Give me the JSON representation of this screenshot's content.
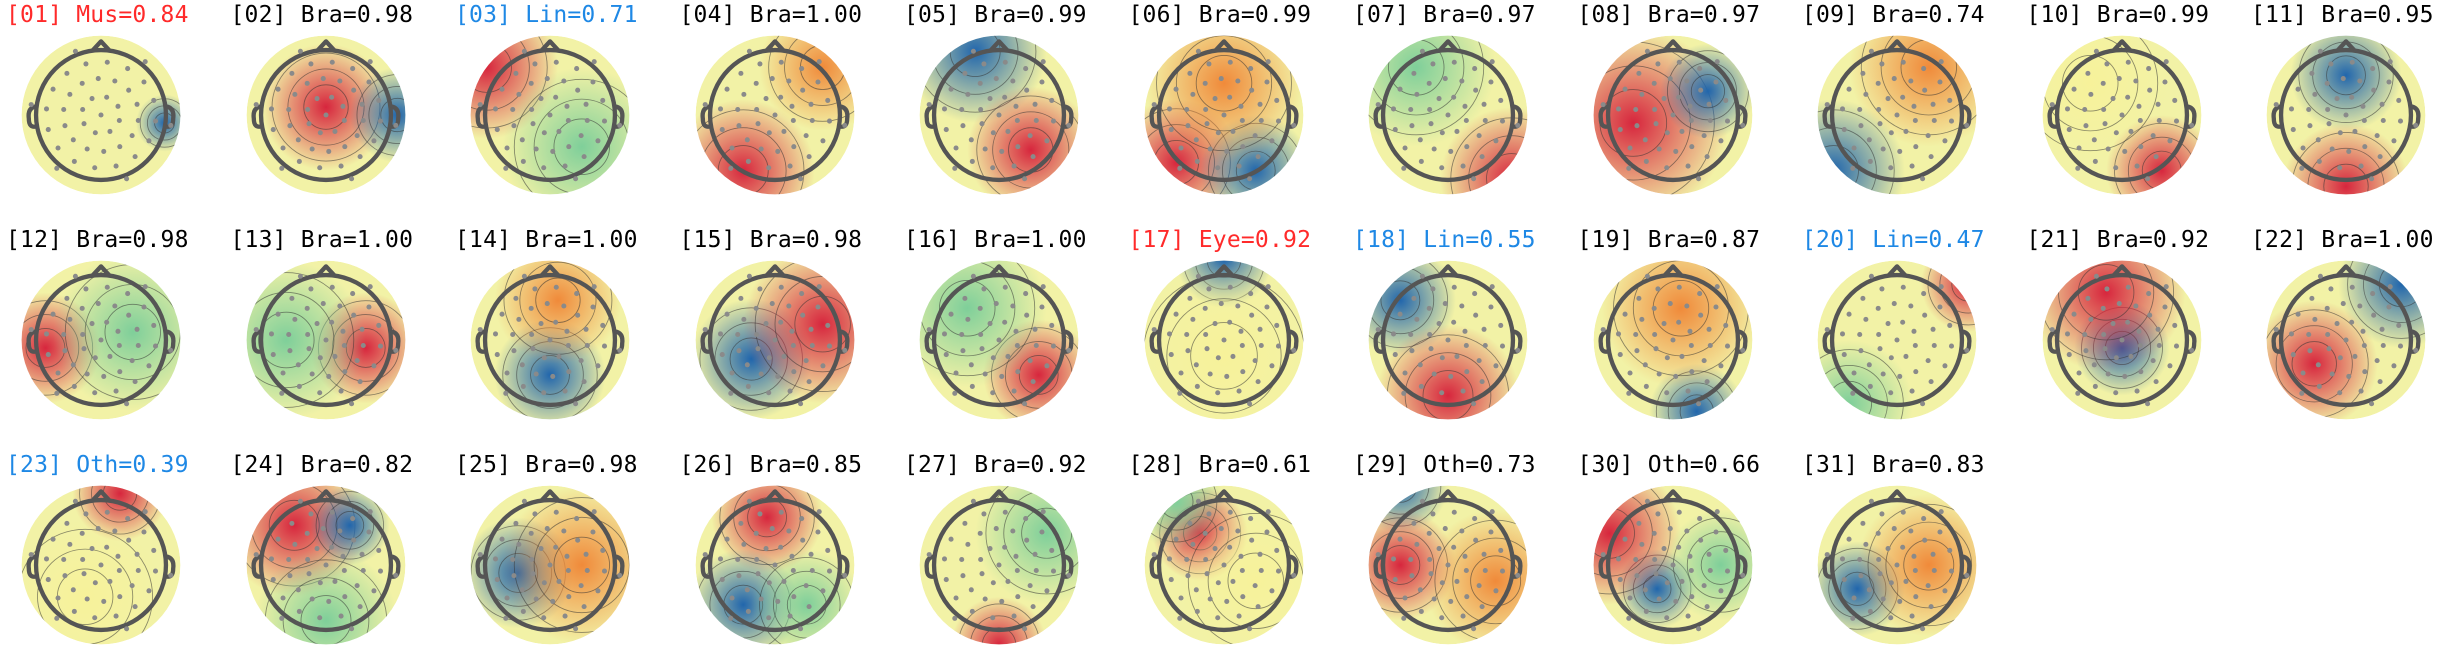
{
  "colors": {
    "text_default": "#000000",
    "text_muscle": "#ff2a2a",
    "text_eye": "#ff2a2a",
    "text_line": "#1e88e5",
    "text_other_highlight": "#1e88e5",
    "head_outline": "#555555",
    "electrode": "#8a8a8a",
    "contour": "#333333",
    "map_neutral": "#f2f2a6",
    "map_positive": "#d7263d",
    "map_negative": "#2166ac"
  },
  "components": [
    {
      "label": "[01] Mus=0.84",
      "color_key": "text_muscle",
      "icon": "scalp-topomap-icon"
    },
    {
      "label": "[02] Bra=0.98",
      "color_key": "text_default",
      "icon": "scalp-topomap-icon"
    },
    {
      "label": "[03] Lin=0.71",
      "color_key": "text_line",
      "icon": "scalp-topomap-icon"
    },
    {
      "label": "[04] Bra=1.00",
      "color_key": "text_default",
      "icon": "scalp-topomap-icon"
    },
    {
      "label": "[05] Bra=0.99",
      "color_key": "text_default",
      "icon": "scalp-topomap-icon"
    },
    {
      "label": "[06] Bra=0.99",
      "color_key": "text_default",
      "icon": "scalp-topomap-icon"
    },
    {
      "label": "[07] Bra=0.97",
      "color_key": "text_default",
      "icon": "scalp-topomap-icon"
    },
    {
      "label": "[08] Bra=0.97",
      "color_key": "text_default",
      "icon": "scalp-topomap-icon"
    },
    {
      "label": "[09] Bra=0.74",
      "color_key": "text_default",
      "icon": "scalp-topomap-icon"
    },
    {
      "label": "[10] Bra=0.99",
      "color_key": "text_default",
      "icon": "scalp-topomap-icon"
    },
    {
      "label": "[11] Bra=0.95",
      "color_key": "text_default",
      "icon": "scalp-topomap-icon"
    },
    {
      "label": "[12] Bra=0.98",
      "color_key": "text_default",
      "icon": "scalp-topomap-icon"
    },
    {
      "label": "[13] Bra=1.00",
      "color_key": "text_default",
      "icon": "scalp-topomap-icon"
    },
    {
      "label": "[14] Bra=1.00",
      "color_key": "text_default",
      "icon": "scalp-topomap-icon"
    },
    {
      "label": "[15] Bra=0.98",
      "color_key": "text_default",
      "icon": "scalp-topomap-icon"
    },
    {
      "label": "[16] Bra=1.00",
      "color_key": "text_default",
      "icon": "scalp-topomap-icon"
    },
    {
      "label": "[17] Eye=0.92",
      "color_key": "text_eye",
      "icon": "scalp-topomap-icon"
    },
    {
      "label": "[18] Lin=0.55",
      "color_key": "text_line",
      "icon": "scalp-topomap-icon"
    },
    {
      "label": "[19] Bra=0.87",
      "color_key": "text_default",
      "icon": "scalp-topomap-icon"
    },
    {
      "label": "[20] Lin=0.47",
      "color_key": "text_line",
      "icon": "scalp-topomap-icon"
    },
    {
      "label": "[21] Bra=0.92",
      "color_key": "text_default",
      "icon": "scalp-topomap-icon"
    },
    {
      "label": "[22] Bra=1.00",
      "color_key": "text_default",
      "icon": "scalp-topomap-icon"
    },
    {
      "label": "[23] Oth=0.39",
      "color_key": "text_other_highlight",
      "icon": "scalp-topomap-icon"
    },
    {
      "label": "[24] Bra=0.82",
      "color_key": "text_default",
      "icon": "scalp-topomap-icon"
    },
    {
      "label": "[25] Bra=0.98",
      "color_key": "text_default",
      "icon": "scalp-topomap-icon"
    },
    {
      "label": "[26] Bra=0.85",
      "color_key": "text_default",
      "icon": "scalp-topomap-icon"
    },
    {
      "label": "[27] Bra=0.92",
      "color_key": "text_default",
      "icon": "scalp-topomap-icon"
    },
    {
      "label": "[28] Bra=0.61",
      "color_key": "text_default",
      "icon": "scalp-topomap-icon"
    },
    {
      "label": "[29] Oth=0.73",
      "color_key": "text_default",
      "icon": "scalp-topomap-icon"
    },
    {
      "label": "[30] Oth=0.66",
      "color_key": "text_default",
      "icon": "scalp-topomap-icon"
    },
    {
      "label": "[31] Bra=0.83",
      "color_key": "text_default",
      "icon": "scalp-topomap-icon"
    }
  ]
}
